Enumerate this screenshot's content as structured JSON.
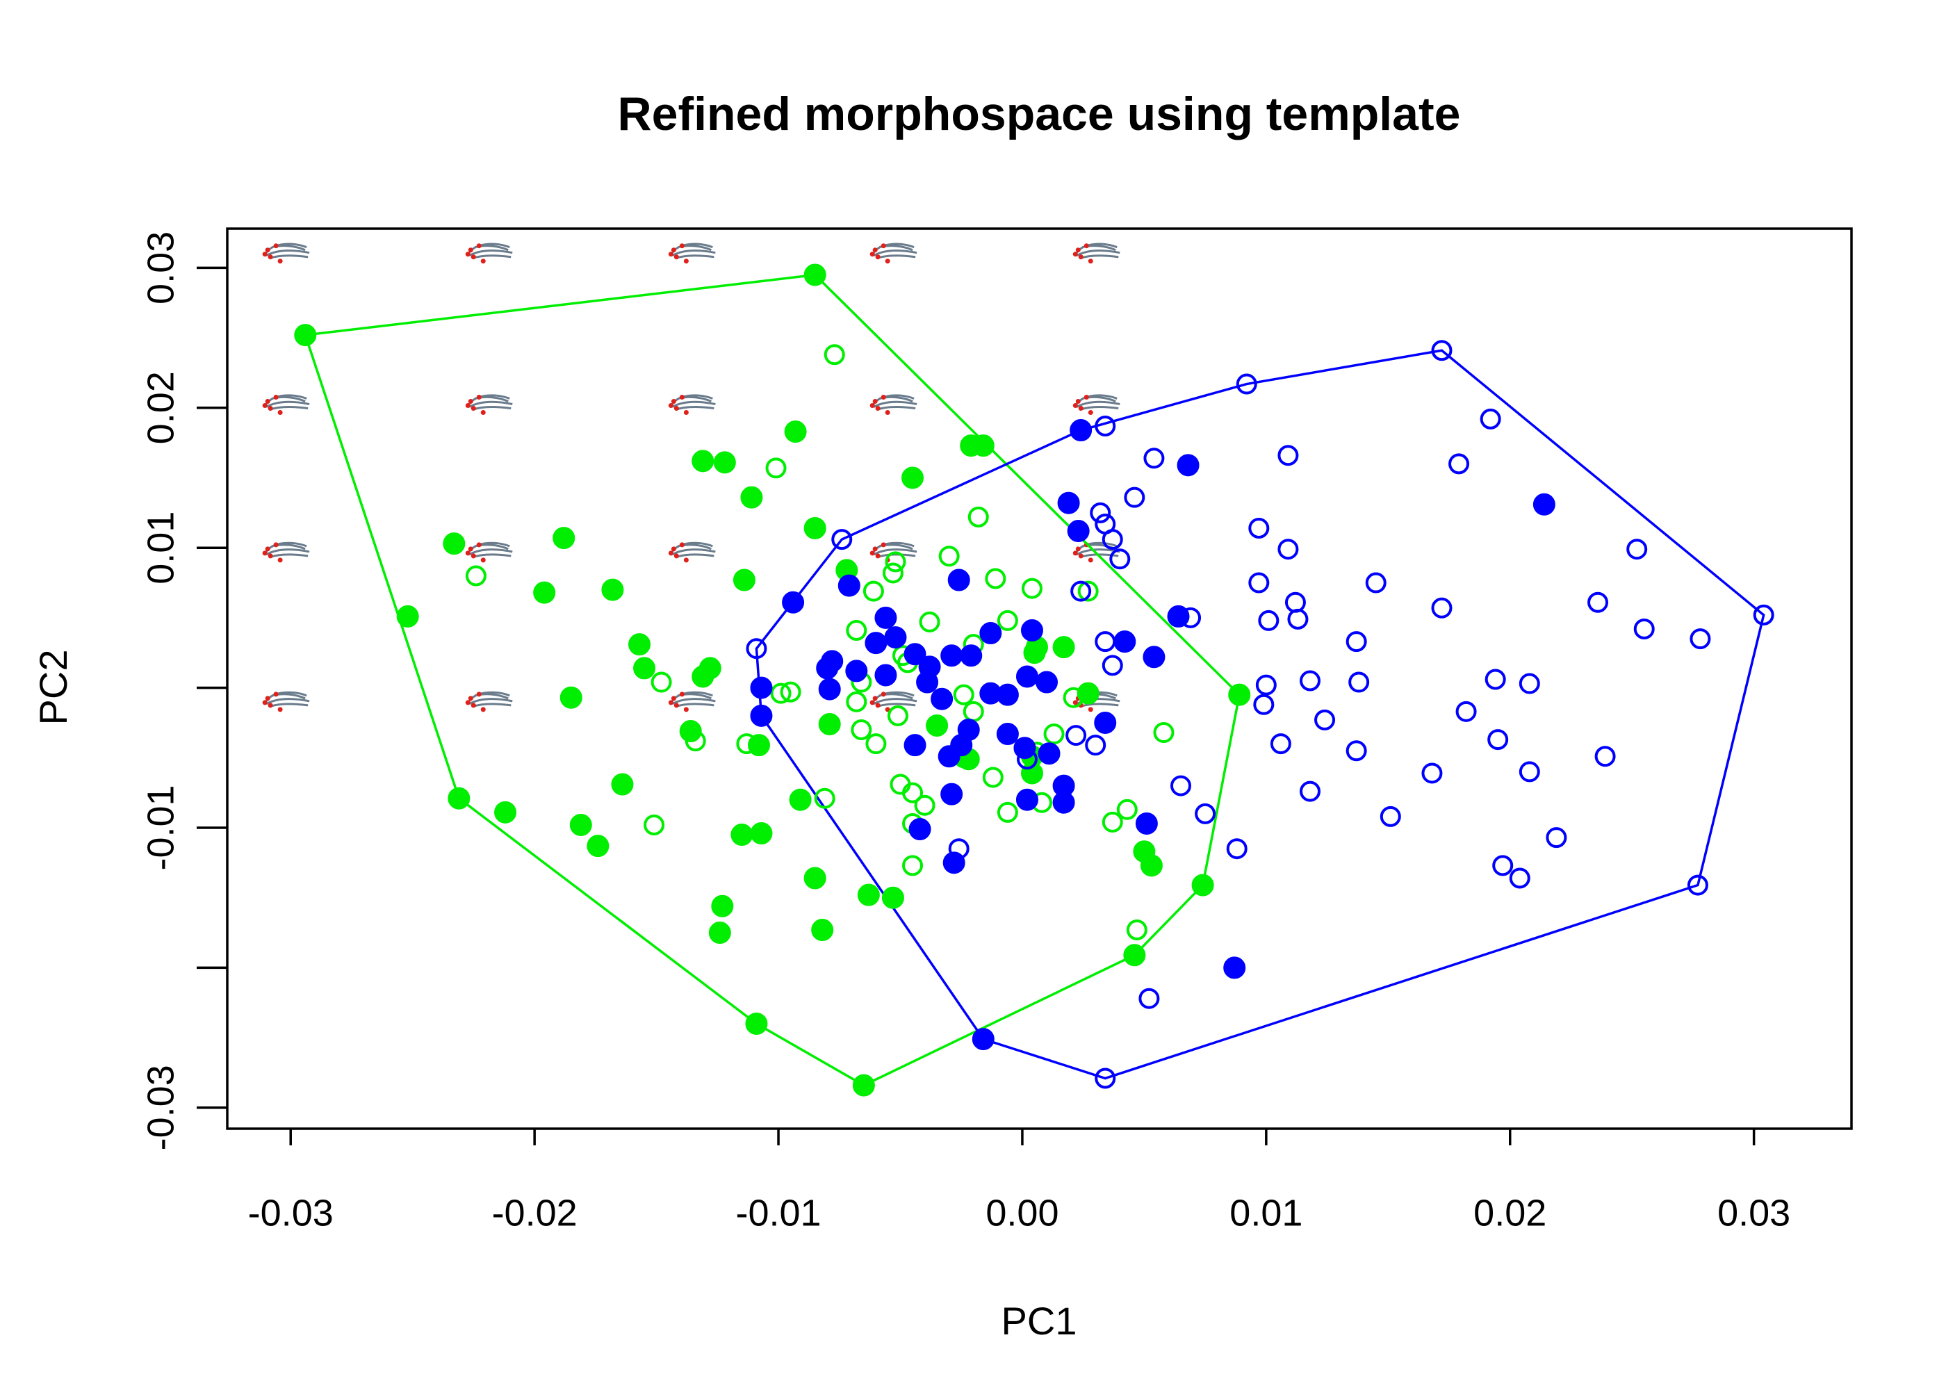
{
  "chart_data": {
    "type": "scatter",
    "title": "Refined morphospace using template",
    "x_label": "PC1",
    "y_label": "PC2",
    "xlim": [
      -0.0326,
      0.034
    ],
    "ylim": [
      -0.0315,
      0.0328
    ],
    "xticks": [
      -0.03,
      -0.02,
      -0.01,
      {
        "value": 0,
        "label": "0.00"
      },
      0.01,
      0.02,
      0.03
    ],
    "yticks": [
      0.03,
      0.02,
      0.01,
      {
        "value": 0,
        "label": null
      },
      -0.01,
      {
        "value": -0.02,
        "label": null
      },
      -0.03
    ],
    "hull": true,
    "series": [
      {
        "color": "#00ee00",
        "filled": true,
        "x": [
          -0.0294,
          -0.0085,
          -0.0021,
          -0.0016,
          0.0089,
          0.0074,
          0.0046,
          -0.0065,
          -0.0109,
          -0.0231,
          -0.0252,
          -0.0131,
          -0.0122,
          -0.0093,
          -0.0045,
          -0.0111,
          -0.0085,
          -0.0233,
          -0.0188,
          -0.0196,
          -0.0168,
          -0.0114,
          -0.0072,
          -0.0157,
          -0.0155,
          -0.0128,
          -0.0131,
          -0.0185,
          -0.0136,
          -0.0108,
          -0.0079,
          -0.0164,
          -0.0091,
          -0.0212,
          -0.0181,
          -0.0174,
          -0.0115,
          -0.0107,
          -0.0085,
          -0.0123,
          -0.0124,
          -0.0082,
          -0.0063,
          -0.0053,
          -0.0035,
          -0.0022,
          0.0004,
          0.0005,
          0.0006,
          0.0017,
          0.0027,
          0.0004,
          0.005,
          0.0053
        ],
        "y": [
          0.0252,
          0.0295,
          0.0173,
          0.0173,
          -0.0005,
          -0.0141,
          -0.0191,
          -0.0284,
          -0.024,
          -0.0079,
          0.0051,
          0.0162,
          0.0161,
          0.0183,
          0.015,
          0.0136,
          0.0114,
          0.0103,
          0.0107,
          0.0068,
          0.007,
          0.0077,
          0.0084,
          0.0031,
          0.0014,
          0.0014,
          0.0008,
          -0.0007,
          -0.0031,
          -0.0041,
          -0.0026,
          -0.0069,
          -0.008,
          -0.0089,
          -0.0098,
          -0.0113,
          -0.0105,
          -0.0104,
          -0.0136,
          -0.0156,
          -0.0175,
          -0.0173,
          -0.0148,
          -0.015,
          -0.0027,
          -0.0051,
          -0.0049,
          0.0025,
          0.0029,
          0.0029,
          -0.0004,
          -0.0061,
          -0.0117,
          -0.0127
        ]
      },
      {
        "color": "#00ee00",
        "filled": false,
        "x": [
          -0.0077,
          -0.0101,
          -0.0224,
          -0.0148,
          -0.0134,
          -0.0151,
          -0.0113,
          -0.0099,
          -0.0095,
          -0.0018,
          -0.003,
          -0.0052,
          -0.0053,
          -0.0061,
          -0.0068,
          -0.0038,
          -0.0049,
          -0.0047,
          -0.0066,
          -0.0068,
          -0.0051,
          -0.0066,
          -0.006,
          -0.005,
          -0.0045,
          -0.004,
          -0.0045,
          -0.0045,
          -0.0081,
          -0.0024,
          -0.002,
          -0.0024,
          -0.002,
          -0.0011,
          -0.0006,
          0.0004,
          0.0021,
          0.0027,
          0.0013,
          0.0008,
          -0.0006,
          0.0043,
          0.0037,
          0.0058,
          0.0047,
          0.0006,
          -0.0012
        ],
        "y": [
          0.0238,
          0.0157,
          0.008,
          0.0004,
          -0.0038,
          -0.0098,
          -0.004,
          -0.0004,
          -0.0003,
          0.0122,
          0.0094,
          0.009,
          0.0082,
          0.0069,
          0.0041,
          0.0047,
          0.0023,
          0.0018,
          0.0004,
          -0.001,
          -0.002,
          -0.003,
          -0.004,
          -0.0069,
          -0.0075,
          -0.0084,
          -0.0097,
          -0.0127,
          -0.0079,
          -0.0005,
          -0.0017,
          -0.005,
          0.0031,
          0.0078,
          0.0048,
          0.0071,
          -0.0007,
          0.0069,
          -0.0033,
          -0.0082,
          -0.0089,
          -0.0087,
          -0.0096,
          -0.0032,
          -0.0173,
          -0.0046,
          -0.0064
        ]
      },
      {
        "color": "#0000ff",
        "filled": true,
        "x": [
          0.0024,
          0.0068,
          0.0214,
          0.0019,
          0.0023,
          -0.0094,
          -0.0071,
          -0.0026,
          0.0064,
          -0.0056,
          -0.0052,
          -0.006,
          -0.0044,
          -0.0038,
          -0.0029,
          -0.0021,
          -0.0013,
          0.0004,
          -0.0078,
          -0.008,
          -0.0079,
          -0.0107,
          -0.0107,
          -0.0068,
          -0.0056,
          -0.0039,
          -0.0033,
          -0.0013,
          -0.0006,
          0.0002,
          0.001,
          0.0042,
          0.0054,
          0.0034,
          -0.0022,
          -0.0025,
          -0.0006,
          0.0001,
          -0.0044,
          -0.003,
          -0.0029,
          0.0011,
          0.0017,
          0.0002,
          0.0017,
          -0.0042,
          -0.0028,
          0.0051,
          0.0087,
          -0.0016
        ],
        "y": [
          0.0184,
          0.0159,
          0.0131,
          0.0132,
          0.0112,
          0.0061,
          0.0073,
          0.0077,
          0.0051,
          0.005,
          0.0036,
          0.0032,
          0.0024,
          0.0015,
          0.0023,
          0.0023,
          0.0039,
          0.0041,
          0.0019,
          0.0014,
          -0.0001,
          0,
          -0.002,
          0.0012,
          0.0009,
          0.0004,
          -0.0008,
          -0.0004,
          -0.0005,
          0.0008,
          0.0004,
          0.0033,
          0.0022,
          -0.0025,
          -0.003,
          -0.0041,
          -0.0033,
          -0.0043,
          -0.0041,
          -0.0049,
          -0.0076,
          -0.0047,
          -0.007,
          -0.008,
          -0.0082,
          -0.0101,
          -0.0125,
          -0.0097,
          -0.02,
          -0.0251
        ]
      },
      {
        "color": "#0000ff",
        "filled": false,
        "x": [
          0.0172,
          0.0304,
          0.0277,
          0.0034,
          -0.0109,
          -0.0074,
          0.0034,
          0.0092,
          0.0192,
          0.0179,
          0.0109,
          0.0054,
          0.0046,
          0.0032,
          0.0034,
          0.0037,
          0.004,
          0.0097,
          0.0109,
          0.0097,
          0.0145,
          0.0172,
          0.0252,
          0.0236,
          0.0255,
          0.0278,
          0.0112,
          0.0113,
          0.0101,
          0.0069,
          0.0137,
          0.0034,
          0.0037,
          0.0024,
          0.0194,
          0.0208,
          0.0118,
          0.01,
          0.0138,
          0.0099,
          0.0182,
          0.0124,
          0.0137,
          0.0106,
          0.0195,
          0.0208,
          0.0239,
          0.0168,
          0.0118,
          0.0065,
          0.0075,
          0.0088,
          0.0151,
          0.0219,
          0.0197,
          0.0204,
          0.0052,
          0.003,
          0.0022,
          -0.0026,
          0.0002
        ],
        "y": [
          0.0241,
          0.0052,
          -0.0141,
          -0.0279,
          0.0028,
          0.0106,
          0.0187,
          0.0217,
          0.0192,
          0.016,
          0.0166,
          0.0164,
          0.0136,
          0.0125,
          0.0117,
          0.0106,
          0.0092,
          0.0114,
          0.0099,
          0.0075,
          0.0075,
          0.0057,
          0.0099,
          0.0061,
          0.0042,
          0.0035,
          0.0061,
          0.0049,
          0.0048,
          0.005,
          0.0033,
          0.0033,
          0.0016,
          0.0069,
          0.0006,
          0.0003,
          0.0005,
          0.0002,
          0.0004,
          -0.0012,
          -0.0017,
          -0.0023,
          -0.0045,
          -0.004,
          -0.0037,
          -0.006,
          -0.0049,
          -0.0061,
          -0.0074,
          -0.007,
          -0.009,
          -0.0115,
          -0.0092,
          -0.0107,
          -0.0127,
          -0.0136,
          -0.0222,
          -0.0041,
          -0.0034,
          -0.0115,
          -0.0051
        ]
      }
    ]
  }
}
